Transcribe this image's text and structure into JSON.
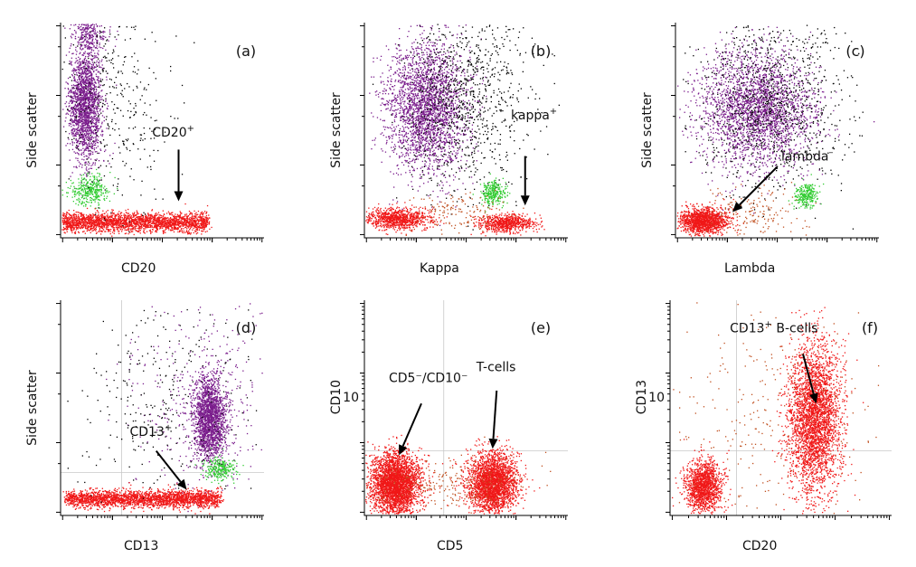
{
  "chart_data": [
    {
      "id": "a",
      "type": "scatter",
      "panel_label": "(a)",
      "xlabel": "CD20",
      "ylabel": "Side scatter",
      "log_x": true,
      "grid": false,
      "populations": [
        {
          "color": "#7a1d8c",
          "cx": 0.12,
          "cy": 0.62,
          "sx": 0.04,
          "sy": 0.13,
          "n": 1900
        },
        {
          "color": "#7a1d8c",
          "cx": 0.14,
          "cy": 0.96,
          "sx": 0.04,
          "sy": 0.05,
          "n": 300
        },
        {
          "color": "#32cc32",
          "cx": 0.14,
          "cy": 0.22,
          "sx": 0.05,
          "sy": 0.035,
          "n": 350
        },
        {
          "color": "#f01818",
          "cx": 0.28,
          "cy": 0.075,
          "sx": 0.22,
          "sy": 0.022,
          "n": 2400,
          "xmin": 0.01,
          "xmax": 0.72
        },
        {
          "color": "#000000",
          "cx": 0.25,
          "cy": 0.65,
          "sx": 0.14,
          "sy": 0.25,
          "n": 400
        }
      ],
      "annotations": [
        {
          "text": "CD20",
          "sup": "+",
          "tx": 0.45,
          "ty": 0.47,
          "from": [
            0.58,
            0.41
          ],
          "to": [
            0.58,
            0.17
          ]
        }
      ]
    },
    {
      "id": "b",
      "type": "scatter",
      "panel_label": "(b)",
      "xlabel": "Kappa",
      "ylabel": "Side scatter",
      "log_x": true,
      "grid": false,
      "populations": [
        {
          "color": "#7a1d8c",
          "cx": 0.3,
          "cy": 0.61,
          "sx": 0.1,
          "sy": 0.15,
          "n": 2600
        },
        {
          "color": "#000000",
          "cx": 0.5,
          "cy": 0.65,
          "sx": 0.15,
          "sy": 0.22,
          "n": 1000
        },
        {
          "color": "#32cc32",
          "cx": 0.63,
          "cy": 0.21,
          "sx": 0.03,
          "sy": 0.03,
          "n": 280
        },
        {
          "color": "#f01818",
          "cx": 0.16,
          "cy": 0.09,
          "sx": 0.08,
          "sy": 0.025,
          "n": 900
        },
        {
          "color": "#f01818",
          "cx": 0.7,
          "cy": 0.07,
          "sx": 0.07,
          "sy": 0.02,
          "n": 700
        },
        {
          "color": "#c05020",
          "cx": 0.45,
          "cy": 0.12,
          "sx": 0.12,
          "sy": 0.05,
          "n": 150
        }
      ],
      "annotations": [
        {
          "text": "kappa",
          "sup": "+",
          "tx": 0.72,
          "ty": 0.55,
          "from": [
            0.79,
            0.38
          ],
          "to": [
            0.79,
            0.15
          ]
        }
      ]
    },
    {
      "id": "c",
      "type": "scatter",
      "panel_label": "(c)",
      "xlabel": "Lambda",
      "ylabel": "Side scatter",
      "log_x": true,
      "grid": false,
      "populations": [
        {
          "color": "#7a1d8c",
          "cx": 0.4,
          "cy": 0.6,
          "sx": 0.14,
          "sy": 0.14,
          "n": 2600
        },
        {
          "color": "#000000",
          "cx": 0.48,
          "cy": 0.65,
          "sx": 0.18,
          "sy": 0.22,
          "n": 1000
        },
        {
          "color": "#32cc32",
          "cx": 0.64,
          "cy": 0.2,
          "sx": 0.03,
          "sy": 0.03,
          "n": 260
        },
        {
          "color": "#f01818",
          "cx": 0.14,
          "cy": 0.08,
          "sx": 0.06,
          "sy": 0.03,
          "n": 1400
        },
        {
          "color": "#c05020",
          "cx": 0.35,
          "cy": 0.12,
          "sx": 0.14,
          "sy": 0.06,
          "n": 180
        }
      ],
      "annotations": [
        {
          "text": "lambda",
          "sup": "–",
          "tx": 0.52,
          "ty": 0.36,
          "from": [
            0.5,
            0.33
          ],
          "to": [
            0.28,
            0.12
          ]
        }
      ]
    },
    {
      "id": "d",
      "type": "scatter",
      "panel_label": "(d)",
      "xlabel": "CD13",
      "ylabel": "Side scatter",
      "log_x": true,
      "grid": true,
      "grid_x": 0.3,
      "grid_y": 0.2,
      "populations": [
        {
          "color": "#7a1d8c",
          "cx": 0.73,
          "cy": 0.45,
          "sx": 0.04,
          "sy": 0.1,
          "n": 1900
        },
        {
          "color": "#7a1d8c",
          "cx": 0.7,
          "cy": 0.55,
          "sx": 0.18,
          "sy": 0.25,
          "n": 400
        },
        {
          "color": "#32cc32",
          "cx": 0.78,
          "cy": 0.22,
          "sx": 0.04,
          "sy": 0.03,
          "n": 250
        },
        {
          "color": "#f01818",
          "cx": 0.35,
          "cy": 0.08,
          "sx": 0.25,
          "sy": 0.02,
          "n": 2400,
          "xmin": 0.03,
          "xmax": 0.78
        },
        {
          "color": "#000000",
          "cx": 0.5,
          "cy": 0.55,
          "sx": 0.2,
          "sy": 0.25,
          "n": 300
        }
      ],
      "annotations": [
        {
          "text": "CD13",
          "sup": "+",
          "tx": 0.34,
          "ty": 0.37,
          "from": [
            0.47,
            0.3
          ],
          "to": [
            0.62,
            0.12
          ]
        }
      ]
    },
    {
      "id": "e",
      "type": "scatter",
      "panel_label": "(e)",
      "xlabel": "CD5",
      "ylabel": "CD10",
      "log_x": true,
      "log_y": true,
      "grid": true,
      "grid_x": 0.39,
      "grid_y": 0.3,
      "y_ticks": [
        {
          "value": "10",
          "pos": 0.55
        }
      ],
      "populations": [
        {
          "color": "#f01818",
          "cx": 0.15,
          "cy": 0.15,
          "sx": 0.06,
          "sy": 0.07,
          "n": 3200
        },
        {
          "color": "#f01818",
          "cx": 0.63,
          "cy": 0.15,
          "sx": 0.06,
          "sy": 0.07,
          "n": 2600
        },
        {
          "color": "#c05020",
          "cx": 0.4,
          "cy": 0.15,
          "sx": 0.18,
          "sy": 0.06,
          "n": 250
        }
      ],
      "annotations": [
        {
          "text": "CD5⁻/CD10⁻",
          "tx": 0.12,
          "ty": 0.62,
          "from": [
            0.28,
            0.52
          ],
          "to": [
            0.17,
            0.28
          ]
        },
        {
          "text": "T-cells",
          "tx": 0.55,
          "ty": 0.67,
          "from": [
            0.65,
            0.58
          ],
          "to": [
            0.63,
            0.31
          ]
        }
      ]
    },
    {
      "id": "f",
      "type": "scatter",
      "panel_label": "(f)",
      "xlabel": "CD20",
      "ylabel": "CD13",
      "log_x": true,
      "log_y": true,
      "grid": true,
      "grid_x": 0.3,
      "grid_y": 0.3,
      "y_ticks": [
        {
          "value": "10",
          "pos": 0.55
        }
      ],
      "populations": [
        {
          "color": "#f01818",
          "cx": 0.15,
          "cy": 0.14,
          "sx": 0.04,
          "sy": 0.06,
          "n": 1400
        },
        {
          "color": "#f01818",
          "cx": 0.65,
          "cy": 0.45,
          "sx": 0.06,
          "sy": 0.18,
          "n": 3200
        },
        {
          "color": "#c05020",
          "cx": 0.45,
          "cy": 0.4,
          "sx": 0.25,
          "sy": 0.3,
          "n": 300
        }
      ],
      "annotations": [
        {
          "text": "CD13",
          "sup": "+",
          "text2": " B-cells",
          "tx": 0.27,
          "ty": 0.85,
          "from": [
            0.6,
            0.75
          ],
          "to": [
            0.66,
            0.52
          ]
        }
      ]
    }
  ]
}
